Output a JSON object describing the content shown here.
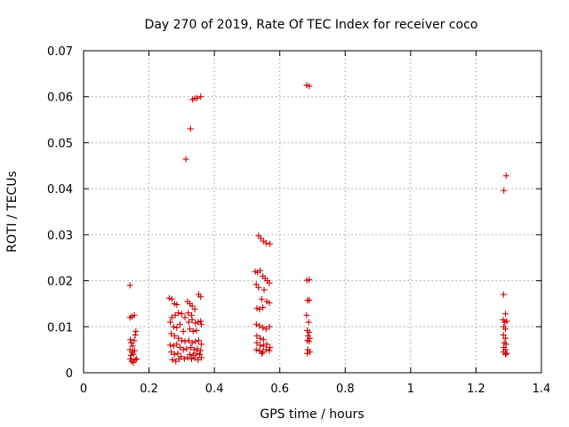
{
  "chart_data": {
    "type": "scatter",
    "title": "Day 270 of 2019, Rate Of TEC Index for receiver coco",
    "xlabel": "GPS time / hours",
    "ylabel": "ROTI / TECUs",
    "xlim": [
      0,
      1.4
    ],
    "ylim": [
      0,
      0.07
    ],
    "xticks": [
      "0",
      "0.2",
      "0.4",
      "0.6",
      "0.8",
      "1",
      "1.2",
      "1.4"
    ],
    "yticks": [
      "0",
      "0.01",
      "0.02",
      "0.03",
      "0.04",
      "0.05",
      "0.06",
      "0.07"
    ],
    "grid": true,
    "marker": "+",
    "marker_color": "#cc0000",
    "points": [
      [
        0.142,
        0.019
      ],
      [
        0.142,
        0.012
      ],
      [
        0.148,
        0.0122
      ],
      [
        0.155,
        0.0125
      ],
      [
        0.143,
        0.0072
      ],
      [
        0.146,
        0.0065
      ],
      [
        0.15,
        0.0058
      ],
      [
        0.155,
        0.007
      ],
      [
        0.158,
        0.0082
      ],
      [
        0.16,
        0.009
      ],
      [
        0.142,
        0.005
      ],
      [
        0.148,
        0.0045
      ],
      [
        0.152,
        0.004
      ],
      [
        0.156,
        0.0048
      ],
      [
        0.145,
        0.0038
      ],
      [
        0.143,
        0.003
      ],
      [
        0.147,
        0.0025
      ],
      [
        0.152,
        0.0022
      ],
      [
        0.158,
        0.0028
      ],
      [
        0.162,
        0.003
      ],
      [
        0.262,
        0.0162
      ],
      [
        0.27,
        0.016
      ],
      [
        0.278,
        0.015
      ],
      [
        0.285,
        0.0148
      ],
      [
        0.27,
        0.012
      ],
      [
        0.28,
        0.0125
      ],
      [
        0.29,
        0.013
      ],
      [
        0.3,
        0.0128
      ],
      [
        0.31,
        0.012
      ],
      [
        0.265,
        0.011
      ],
      [
        0.275,
        0.01
      ],
      [
        0.285,
        0.0098
      ],
      [
        0.295,
        0.0105
      ],
      [
        0.305,
        0.009
      ],
      [
        0.268,
        0.0085
      ],
      [
        0.278,
        0.008
      ],
      [
        0.29,
        0.0075
      ],
      [
        0.3,
        0.007
      ],
      [
        0.31,
        0.0068
      ],
      [
        0.265,
        0.006
      ],
      [
        0.275,
        0.0058
      ],
      [
        0.285,
        0.0062
      ],
      [
        0.295,
        0.0055
      ],
      [
        0.305,
        0.005
      ],
      [
        0.315,
        0.0052
      ],
      [
        0.268,
        0.0045
      ],
      [
        0.278,
        0.004
      ],
      [
        0.288,
        0.0042
      ],
      [
        0.298,
        0.0035
      ],
      [
        0.308,
        0.003
      ],
      [
        0.318,
        0.0033
      ],
      [
        0.272,
        0.0028
      ],
      [
        0.282,
        0.0025
      ],
      [
        0.292,
        0.003
      ],
      [
        0.318,
        0.0155
      ],
      [
        0.325,
        0.015
      ],
      [
        0.332,
        0.0145
      ],
      [
        0.34,
        0.0138
      ],
      [
        0.32,
        0.013
      ],
      [
        0.33,
        0.0125
      ],
      [
        0.322,
        0.011
      ],
      [
        0.332,
        0.0115
      ],
      [
        0.342,
        0.0108
      ],
      [
        0.35,
        0.011
      ],
      [
        0.358,
        0.0112
      ],
      [
        0.36,
        0.0105
      ],
      [
        0.325,
        0.0095
      ],
      [
        0.335,
        0.009
      ],
      [
        0.345,
        0.0092
      ],
      [
        0.322,
        0.007
      ],
      [
        0.332,
        0.0065
      ],
      [
        0.342,
        0.0068
      ],
      [
        0.352,
        0.007
      ],
      [
        0.36,
        0.0062
      ],
      [
        0.328,
        0.0055
      ],
      [
        0.338,
        0.005
      ],
      [
        0.348,
        0.0052
      ],
      [
        0.358,
        0.0048
      ],
      [
        0.325,
        0.004
      ],
      [
        0.335,
        0.0038
      ],
      [
        0.345,
        0.0042
      ],
      [
        0.355,
        0.004
      ],
      [
        0.33,
        0.003
      ],
      [
        0.34,
        0.0032
      ],
      [
        0.35,
        0.0028
      ],
      [
        0.36,
        0.0033
      ],
      [
        0.352,
        0.017
      ],
      [
        0.358,
        0.0165
      ],
      [
        0.313,
        0.0464
      ],
      [
        0.327,
        0.053
      ],
      [
        0.333,
        0.0594
      ],
      [
        0.34,
        0.0596
      ],
      [
        0.347,
        0.0597
      ],
      [
        0.358,
        0.06
      ],
      [
        0.535,
        0.0298
      ],
      [
        0.542,
        0.0292
      ],
      [
        0.55,
        0.0286
      ],
      [
        0.558,
        0.0282
      ],
      [
        0.57,
        0.028
      ],
      [
        0.525,
        0.022
      ],
      [
        0.532,
        0.0218
      ],
      [
        0.54,
        0.0222
      ],
      [
        0.548,
        0.021
      ],
      [
        0.555,
        0.0205
      ],
      [
        0.562,
        0.02
      ],
      [
        0.568,
        0.0195
      ],
      [
        0.528,
        0.0192
      ],
      [
        0.535,
        0.0185
      ],
      [
        0.552,
        0.018
      ],
      [
        0.545,
        0.016
      ],
      [
        0.56,
        0.0155
      ],
      [
        0.568,
        0.0152
      ],
      [
        0.53,
        0.014
      ],
      [
        0.538,
        0.0138
      ],
      [
        0.548,
        0.0142
      ],
      [
        0.528,
        0.0105
      ],
      [
        0.538,
        0.0102
      ],
      [
        0.548,
        0.0098
      ],
      [
        0.558,
        0.0095
      ],
      [
        0.568,
        0.01
      ],
      [
        0.53,
        0.008
      ],
      [
        0.54,
        0.0075
      ],
      [
        0.55,
        0.0072
      ],
      [
        0.53,
        0.0065
      ],
      [
        0.54,
        0.006
      ],
      [
        0.55,
        0.0058
      ],
      [
        0.56,
        0.0062
      ],
      [
        0.57,
        0.0055
      ],
      [
        0.528,
        0.005
      ],
      [
        0.538,
        0.0048
      ],
      [
        0.548,
        0.0045
      ],
      [
        0.558,
        0.005
      ],
      [
        0.568,
        0.0048
      ],
      [
        0.545,
        0.0042
      ],
      [
        0.682,
        0.0625
      ],
      [
        0.69,
        0.0623
      ],
      [
        0.683,
        0.0201
      ],
      [
        0.69,
        0.0202
      ],
      [
        0.685,
        0.0157
      ],
      [
        0.69,
        0.0158
      ],
      [
        0.682,
        0.0125
      ],
      [
        0.688,
        0.011
      ],
      [
        0.684,
        0.0092
      ],
      [
        0.69,
        0.0088
      ],
      [
        0.686,
        0.008
      ],
      [
        0.692,
        0.0075
      ],
      [
        0.684,
        0.007
      ],
      [
        0.69,
        0.0068
      ],
      [
        0.686,
        0.005
      ],
      [
        0.692,
        0.0045
      ],
      [
        0.684,
        0.0042
      ],
      [
        1.292,
        0.0428
      ],
      [
        1.285,
        0.0396
      ],
      [
        1.284,
        0.017
      ],
      [
        1.29,
        0.0128
      ],
      [
        1.283,
        0.0115
      ],
      [
        1.288,
        0.011
      ],
      [
        1.294,
        0.0112
      ],
      [
        1.285,
        0.01
      ],
      [
        1.29,
        0.0095
      ],
      [
        1.284,
        0.0082
      ],
      [
        1.29,
        0.0075
      ],
      [
        1.286,
        0.0065
      ],
      [
        1.292,
        0.0062
      ],
      [
        1.285,
        0.0055
      ],
      [
        1.29,
        0.005
      ],
      [
        1.284,
        0.0045
      ],
      [
        1.29,
        0.004
      ],
      [
        1.294,
        0.0042
      ]
    ]
  }
}
